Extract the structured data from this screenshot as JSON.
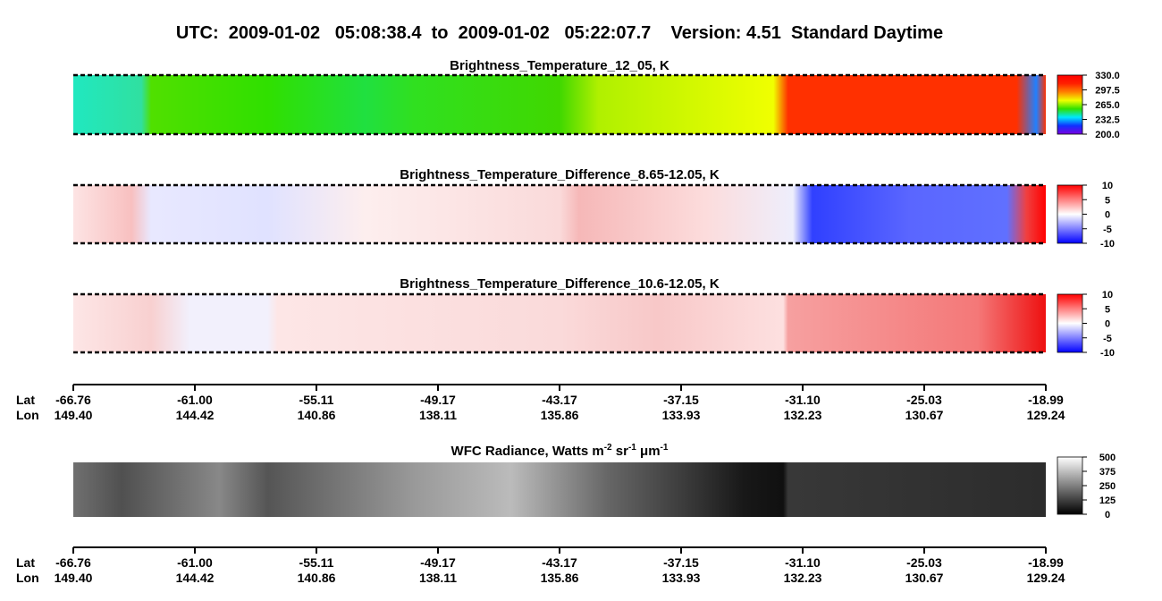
{
  "title": "UTC:  2009-01-02   05:08:38.4  to  2009-01-02   05:22:07.7    Version: 4.51  Standard Daytime",
  "chart_data": [
    {
      "type": "heatmap",
      "title": [
        "Brightness_Temperature_12_05, K"
      ],
      "colorbar": {
        "lim": [
          200,
          330
        ],
        "ticks": [
          {
            "value": 200,
            "label": "200.0"
          },
          {
            "value": 232.5,
            "label": "232.5"
          },
          {
            "value": 265,
            "label": "265.0"
          },
          {
            "value": 297.5,
            "label": "297.5"
          },
          {
            "value": 330,
            "label": "330.0"
          }
        ],
        "colormap": [
          "#7a00e0",
          "#1030ff",
          "#00e8ff",
          "#30e000",
          "#f0ff00",
          "#ff8000",
          "#ff2000",
          "#ff0000"
        ]
      }
    },
    {
      "type": "heatmap",
      "title": [
        "Brightness_Temperature_Difference_8.65-12.05, K"
      ],
      "colorbar": {
        "lim": [
          -10,
          10
        ],
        "ticks": [
          -10,
          -5,
          0,
          5,
          10
        ],
        "colormap": [
          "#0000ff",
          "#ffffff",
          "#ff0000"
        ]
      }
    },
    {
      "type": "heatmap",
      "title": [
        "Brightness_Temperature_Difference_10.6-12.05, K"
      ],
      "colorbar": {
        "lim": [
          -10,
          10
        ],
        "ticks": [
          -10,
          -5,
          0,
          5,
          10
        ],
        "colormap": [
          "#0000ff",
          "#ffffff",
          "#ff0000"
        ]
      }
    },
    {
      "type": "heatmap",
      "title": [
        "WFC Radiance, Watts m",
        "-2",
        " sr",
        "-1",
        " μm",
        "-1"
      ],
      "colorbar": {
        "lim": [
          0,
          500
        ],
        "ticks": [
          0,
          125,
          250,
          375,
          500
        ],
        "colormap": [
          "#000000",
          "#ffffff"
        ]
      }
    }
  ],
  "track_axis": {
    "row_labels": [
      "Lat",
      "Lon"
    ],
    "lat": [
      "-66.76",
      "-61.00",
      "-55.11",
      "-49.17",
      "-43.17",
      "-37.15",
      "-31.10",
      "-25.03",
      "-18.99"
    ],
    "lon": [
      "149.40",
      "144.42",
      "140.86",
      "138.11",
      "135.86",
      "133.93",
      "132.23",
      "130.67",
      "129.24"
    ]
  }
}
